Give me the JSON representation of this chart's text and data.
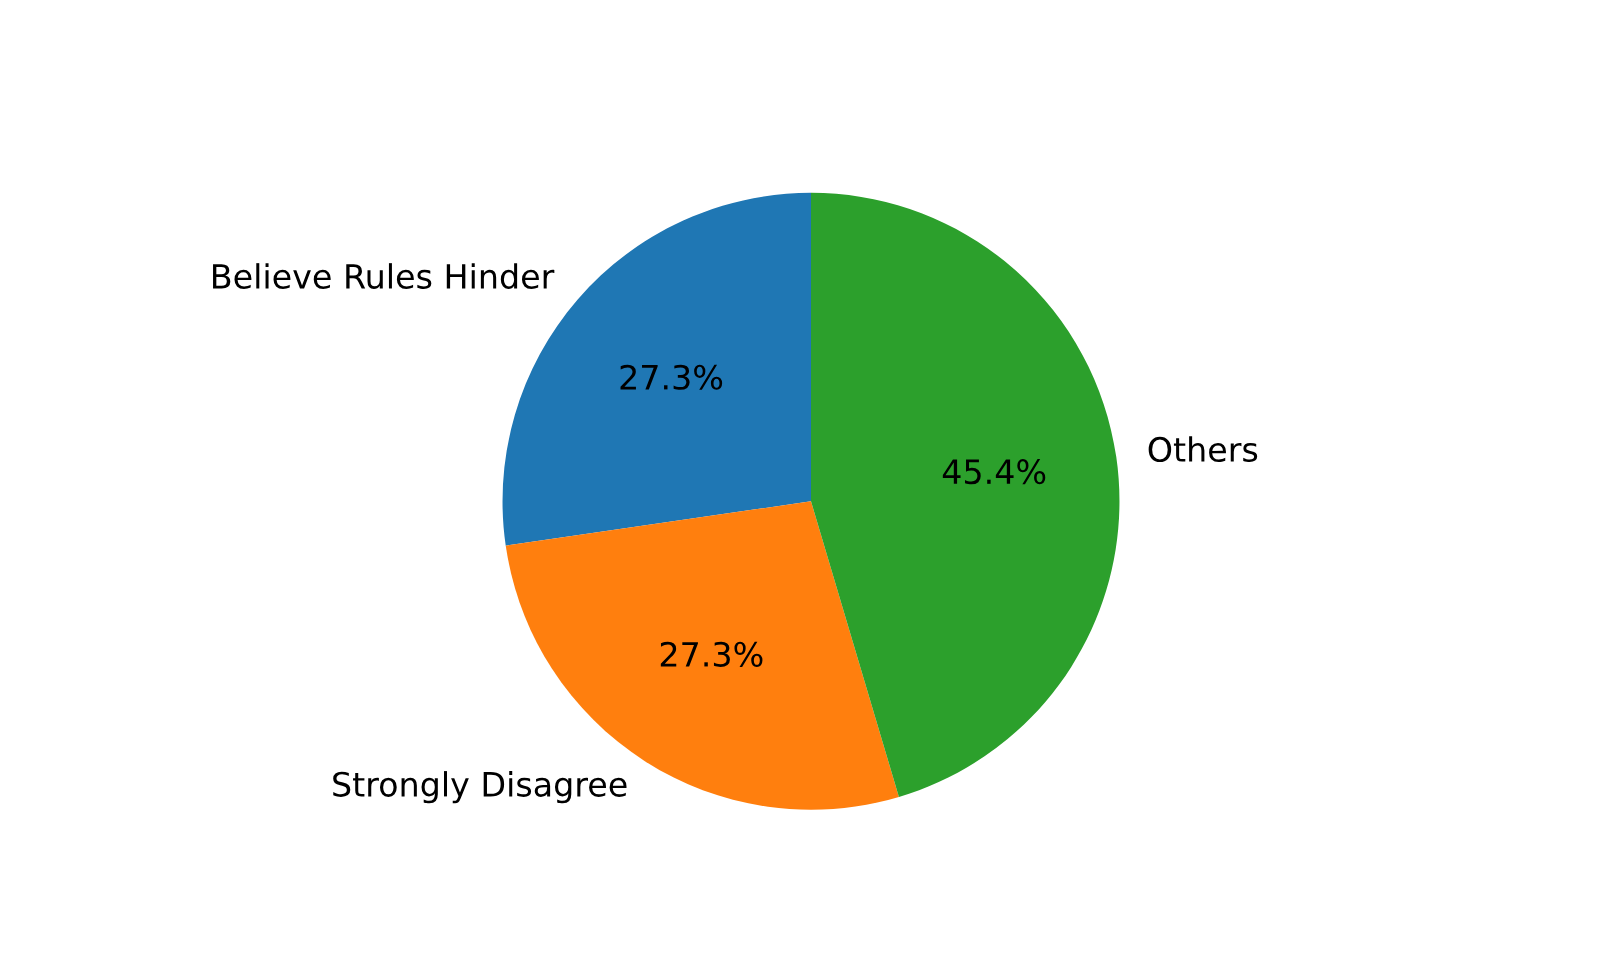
{
  "chart_data": {
    "type": "pie",
    "categories": [
      "Believe Rules Hinder",
      "Strongly Disagree",
      "Others"
    ],
    "values": [
      27.3,
      27.3,
      45.4
    ],
    "colors": [
      "#1f77b4",
      "#ff7f0e",
      "#2ca02c"
    ],
    "value_labels": [
      "27.3%",
      "27.3%",
      "45.4%"
    ]
  }
}
